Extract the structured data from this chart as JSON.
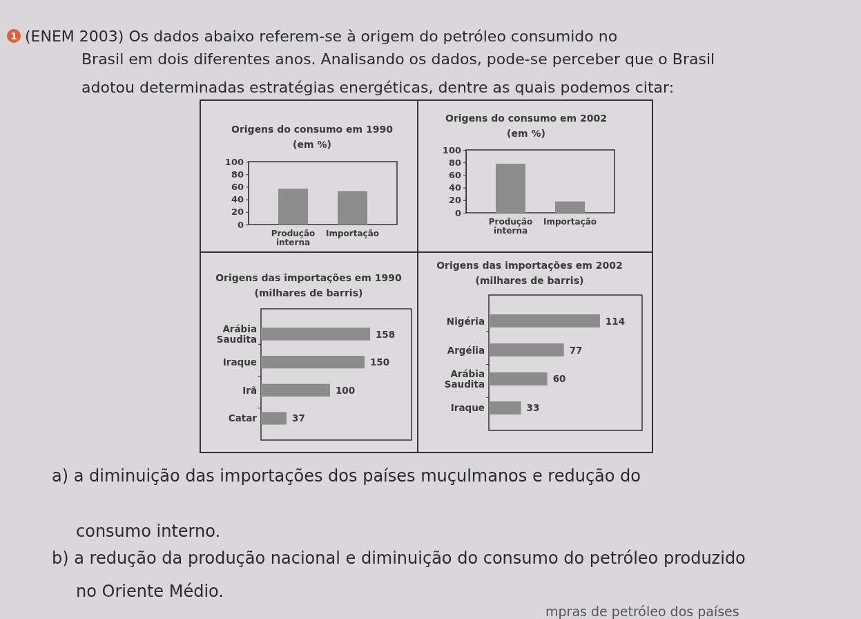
{
  "chart_data": [
    {
      "type": "other",
      "annotations": [
        "1",
        "(ENEM 2003) Os dados abaixo referem-se à origem do petróleo consumido no",
        "Brasil em dois diferentes anos. Analisando os dados, pode-se perceber que o Brasil",
        "adotou determinadas estratégias energéticas, dentre as quais podemos citar:"
      ]
    },
    {
      "type": "bar",
      "title": "Origens do consumo em 1990",
      "subtitle": "(em %)",
      "categories": [
        "Produção interna",
        "Importação"
      ],
      "values": [
        57,
        53
      ],
      "color": "#8c8c8c",
      "ylim": [
        0,
        100
      ],
      "yticks": [
        0,
        20,
        40,
        60,
        80,
        100
      ]
    },
    {
      "type": "bar",
      "title": "Origens do consumo em 2002",
      "subtitle": "(em %)",
      "categories": [
        "Produção interna",
        "Importação"
      ],
      "values": [
        78,
        18
      ],
      "color": "#8c8c8c",
      "ylim": [
        0,
        100
      ],
      "yticks": [
        0,
        20,
        40,
        60,
        80,
        100
      ]
    },
    {
      "type": "bar",
      "orientation": "horizontal",
      "title": "Origens das importações em 1990",
      "subtitle": "(milhares de barris)",
      "categories": [
        "Arábia Saudita",
        "Iraque",
        "Irã",
        "Catar"
      ],
      "values": [
        158,
        150,
        100,
        37
      ],
      "color": "#8c8c8c",
      "data_labels": true
    },
    {
      "type": "bar",
      "orientation": "horizontal",
      "title": "Origens das importações em 2002",
      "subtitle": "(milhares de barris)",
      "categories": [
        "Nigéria",
        "Argélia",
        "Arábia Saudita",
        "Iraque"
      ],
      "values": [
        114,
        77,
        60,
        33
      ],
      "color": "#8c8c8c",
      "data_labels": true
    },
    {
      "type": "other",
      "annotations": [
        "a) a diminuição das importações dos países muçulmanos e redução do",
        "consumo interno.",
        "b) a redução da produção nacional e diminuição do consumo do petróleo produzido",
        "no Oriente Médio.",
        "mpras de petróleo dos países"
      ]
    }
  ]
}
